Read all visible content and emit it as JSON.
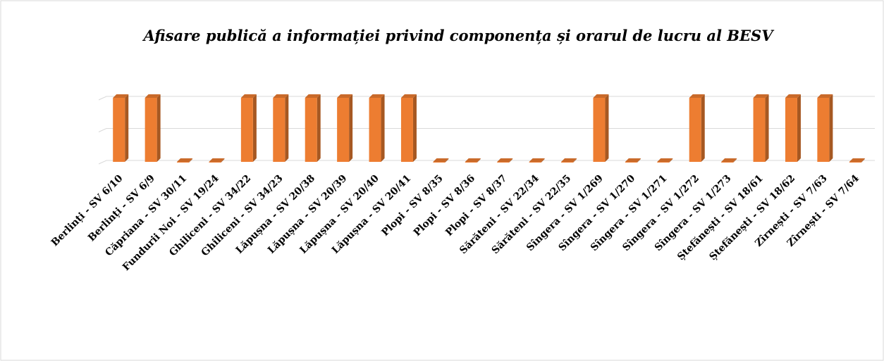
{
  "chart_data": {
    "type": "bar",
    "title": "Afisare publică a informației privind componența și orarul de lucru al BESV",
    "categories": [
      "Berlinți - SV 6/10",
      "Berlinți - SV 6/9",
      "Căpriana - SV 30/11",
      "Fundurii Noi - SV 19/24",
      "Ghiliceni - SV 34/22",
      "Ghiliceni - SV 34/23",
      "Lăpușna - SV 20/38",
      "Lăpușna - SV 20/39",
      "Lăpușna - SV 20/40",
      "Lăpușna - SV 20/41",
      "Plopi - SV 8/35",
      "Plopi - SV 8/36",
      "Plopi - SV 8/37",
      "Sărăteni - SV 22/34",
      "Sărăteni - SV 22/35",
      "Sîngera - SV 1/269",
      "Sîngera - SV 1/270",
      "Sîngera - SV 1/271",
      "Sîngera - SV 1/272",
      "Sîngera - SV 1/273",
      "Ștefănești - SV 18/61",
      "Ștefănești - SV 18/62",
      "Zîrnești - SV 7/63",
      "Zîrnești - SV 7/64"
    ],
    "values": [
      1,
      1,
      0,
      0,
      1,
      1,
      1,
      1,
      1,
      1,
      0,
      0,
      0,
      0,
      0,
      1,
      0,
      0,
      1,
      0,
      1,
      1,
      1,
      0
    ],
    "color": "#ed7d31",
    "ylim": [
      0,
      1
    ],
    "yticks": [
      0,
      0.5,
      1
    ],
    "grid": true
  }
}
